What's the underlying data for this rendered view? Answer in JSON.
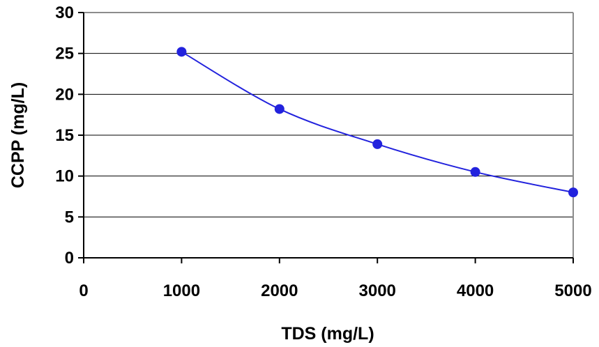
{
  "chart_data": {
    "type": "line",
    "title": "",
    "xlabel": "TDS (mg/L)",
    "ylabel": "CCPP (mg/L)",
    "xlim": [
      0,
      5000
    ],
    "ylim": [
      0,
      30
    ],
    "xticks": [
      0,
      1000,
      2000,
      3000,
      4000,
      5000
    ],
    "yticks": [
      0,
      5,
      10,
      15,
      20,
      25,
      30
    ],
    "xtick_labels": [
      "0",
      "1000",
      "2000",
      "3000",
      "4000",
      "5000"
    ],
    "ytick_labels": [
      "0",
      "5",
      "10",
      "15",
      "20",
      "25",
      "30"
    ],
    "grid": "horizontal",
    "legend": "none",
    "series": [
      {
        "x": [
          1000,
          2000,
          3000,
          4000,
          5000
        ],
        "y": [
          25.2,
          18.2,
          13.9,
          10.5,
          8.0
        ],
        "color": "#2222dd",
        "marker": "circle",
        "smooth": true
      }
    ]
  }
}
